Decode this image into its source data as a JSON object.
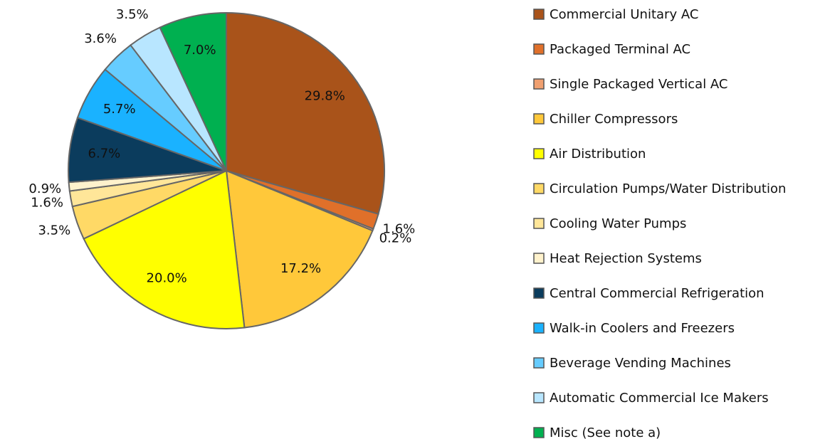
{
  "chart_data": {
    "type": "pie",
    "categories": [
      "Commercial Unitary AC",
      "Packaged Terminal AC",
      "Single Packaged Vertical AC",
      "Chiller Compressors",
      "Air Distribution",
      "Circulation Pumps/Water Distribution",
      "Cooling Water Pumps",
      "Heat Rejection Systems",
      "Central Commercial Refrigeration",
      "Walk-in Coolers and Freezers",
      "Beverage Vending Machines",
      "Automatic Commercial Ice Makers",
      "Misc (See note a)"
    ],
    "values": [
      29.8,
      1.6,
      0.2,
      17.2,
      20.0,
      3.5,
      1.6,
      0.9,
      6.7,
      5.7,
      3.6,
      3.5,
      7.0
    ],
    "value_labels": [
      "29.8%",
      "1.6%",
      "0.2%",
      "17.2%",
      "20.0%",
      "3.5%",
      "1.6%",
      "0.9%",
      "6.7%",
      "5.7%",
      "3.6%",
      "3.5%",
      "7.0%"
    ],
    "colors": [
      "#a9531a",
      "#e0702a",
      "#f0a070",
      "#ffc83a",
      "#ffff00",
      "#ffd966",
      "#ffe699",
      "#fff2cc",
      "#0b3c5d",
      "#1ab2ff",
      "#66ccff",
      "#b8e6ff",
      "#00b050"
    ],
    "legend": "right"
  }
}
